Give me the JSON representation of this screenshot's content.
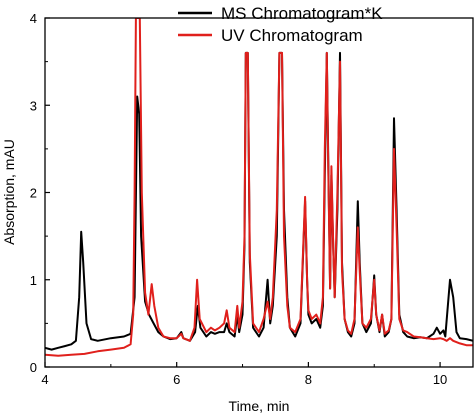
{
  "chart_data": {
    "type": "line",
    "title": "",
    "xlabel": "Time, min",
    "ylabel": "Absorption, mAU",
    "xlim": [
      4,
      10.5
    ],
    "ylim": [
      0,
      4
    ],
    "x_ticks": [
      "4",
      "6",
      "8",
      "10"
    ],
    "y_ticks": [
      "0",
      "1",
      "2",
      "3",
      "4"
    ],
    "grid": false,
    "legend_position": "top-right",
    "series": [
      {
        "name": "MS Chromatogram*K",
        "color": "#000000",
        "points": [
          [
            4.0,
            0.22
          ],
          [
            4.1,
            0.2
          ],
          [
            4.2,
            0.22
          ],
          [
            4.3,
            0.24
          ],
          [
            4.4,
            0.26
          ],
          [
            4.47,
            0.3
          ],
          [
            4.52,
            0.8
          ],
          [
            4.55,
            1.55
          ],
          [
            4.58,
            1.2
          ],
          [
            4.63,
            0.5
          ],
          [
            4.7,
            0.32
          ],
          [
            4.8,
            0.3
          ],
          [
            5.0,
            0.33
          ],
          [
            5.2,
            0.35
          ],
          [
            5.3,
            0.38
          ],
          [
            5.36,
            0.8
          ],
          [
            5.4,
            3.1
          ],
          [
            5.43,
            2.9
          ],
          [
            5.46,
            1.5
          ],
          [
            5.52,
            0.75
          ],
          [
            5.58,
            0.6
          ],
          [
            5.65,
            0.5
          ],
          [
            5.72,
            0.4
          ],
          [
            5.8,
            0.35
          ],
          [
            5.9,
            0.32
          ],
          [
            6.0,
            0.33
          ],
          [
            6.07,
            0.4
          ],
          [
            6.1,
            0.33
          ],
          [
            6.2,
            0.3
          ],
          [
            6.28,
            0.4
          ],
          [
            6.32,
            0.7
          ],
          [
            6.36,
            0.45
          ],
          [
            6.45,
            0.35
          ],
          [
            6.52,
            0.4
          ],
          [
            6.58,
            0.38
          ],
          [
            6.65,
            0.4
          ],
          [
            6.72,
            0.4
          ],
          [
            6.76,
            0.5
          ],
          [
            6.8,
            0.4
          ],
          [
            6.88,
            0.35
          ],
          [
            6.92,
            0.6
          ],
          [
            6.95,
            0.4
          ],
          [
            7.0,
            0.6
          ],
          [
            7.03,
            1.4
          ],
          [
            7.05,
            3.6
          ],
          [
            7.08,
            3.6
          ],
          [
            7.11,
            1.2
          ],
          [
            7.16,
            0.45
          ],
          [
            7.25,
            0.35
          ],
          [
            7.32,
            0.45
          ],
          [
            7.38,
            1.0
          ],
          [
            7.42,
            0.5
          ],
          [
            7.46,
            0.7
          ],
          [
            7.52,
            1.5
          ],
          [
            7.56,
            3.6
          ],
          [
            7.6,
            3.6
          ],
          [
            7.63,
            1.8
          ],
          [
            7.68,
            0.8
          ],
          [
            7.72,
            0.45
          ],
          [
            7.8,
            0.35
          ],
          [
            7.88,
            0.5
          ],
          [
            7.95,
            1.9
          ],
          [
            7.98,
            1.0
          ],
          [
            8.0,
            0.6
          ],
          [
            8.05,
            0.5
          ],
          [
            8.12,
            0.55
          ],
          [
            8.18,
            0.45
          ],
          [
            8.22,
            0.7
          ],
          [
            8.25,
            2.2
          ],
          [
            8.28,
            3.6
          ],
          [
            8.3,
            2.5
          ],
          [
            8.33,
            0.9
          ],
          [
            8.35,
            2.2
          ],
          [
            8.38,
            1.3
          ],
          [
            8.4,
            0.8
          ],
          [
            8.44,
            1.8
          ],
          [
            8.48,
            3.6
          ],
          [
            8.51,
            1.2
          ],
          [
            8.55,
            0.55
          ],
          [
            8.6,
            0.4
          ],
          [
            8.65,
            0.35
          ],
          [
            8.7,
            0.5
          ],
          [
            8.75,
            1.9
          ],
          [
            8.78,
            1.2
          ],
          [
            8.82,
            0.5
          ],
          [
            8.88,
            0.4
          ],
          [
            8.95,
            0.5
          ],
          [
            9.0,
            1.05
          ],
          [
            9.03,
            0.6
          ],
          [
            9.08,
            0.4
          ],
          [
            9.12,
            0.6
          ],
          [
            9.16,
            0.35
          ],
          [
            9.22,
            0.4
          ],
          [
            9.26,
            0.55
          ],
          [
            9.3,
            2.85
          ],
          [
            9.34,
            1.8
          ],
          [
            9.38,
            0.6
          ],
          [
            9.44,
            0.4
          ],
          [
            9.5,
            0.35
          ],
          [
            9.6,
            0.33
          ],
          [
            9.7,
            0.34
          ],
          [
            9.8,
            0.33
          ],
          [
            9.9,
            0.38
          ],
          [
            9.95,
            0.45
          ],
          [
            10.0,
            0.38
          ],
          [
            10.05,
            0.42
          ],
          [
            10.08,
            0.35
          ],
          [
            10.15,
            1.0
          ],
          [
            10.2,
            0.8
          ],
          [
            10.25,
            0.4
          ],
          [
            10.3,
            0.33
          ],
          [
            10.4,
            0.32
          ],
          [
            10.5,
            0.3
          ]
        ]
      },
      {
        "name": "UV Chromatogram",
        "color": "#e0201c",
        "points": [
          [
            4.0,
            0.14
          ],
          [
            4.2,
            0.13
          ],
          [
            4.4,
            0.14
          ],
          [
            4.6,
            0.15
          ],
          [
            4.8,
            0.18
          ],
          [
            5.0,
            0.2
          ],
          [
            5.2,
            0.22
          ],
          [
            5.3,
            0.26
          ],
          [
            5.34,
            0.6
          ],
          [
            5.36,
            2.0
          ],
          [
            5.38,
            4.0
          ],
          [
            5.4,
            4.0
          ],
          [
            5.42,
            4.0
          ],
          [
            5.44,
            4.0
          ],
          [
            5.47,
            2.0
          ],
          [
            5.52,
            0.85
          ],
          [
            5.57,
            0.6
          ],
          [
            5.62,
            0.95
          ],
          [
            5.66,
            0.7
          ],
          [
            5.72,
            0.45
          ],
          [
            5.8,
            0.35
          ],
          [
            5.9,
            0.33
          ],
          [
            6.0,
            0.33
          ],
          [
            6.07,
            0.38
          ],
          [
            6.1,
            0.33
          ],
          [
            6.2,
            0.3
          ],
          [
            6.27,
            0.45
          ],
          [
            6.31,
            1.0
          ],
          [
            6.35,
            0.55
          ],
          [
            6.45,
            0.4
          ],
          [
            6.52,
            0.45
          ],
          [
            6.58,
            0.42
          ],
          [
            6.65,
            0.45
          ],
          [
            6.72,
            0.5
          ],
          [
            6.76,
            0.65
          ],
          [
            6.8,
            0.45
          ],
          [
            6.88,
            0.4
          ],
          [
            6.92,
            0.7
          ],
          [
            6.95,
            0.45
          ],
          [
            7.0,
            0.75
          ],
          [
            7.03,
            1.5
          ],
          [
            7.05,
            3.6
          ],
          [
            7.08,
            3.6
          ],
          [
            7.11,
            1.3
          ],
          [
            7.16,
            0.5
          ],
          [
            7.25,
            0.4
          ],
          [
            7.32,
            0.55
          ],
          [
            7.38,
            0.75
          ],
          [
            7.42,
            0.55
          ],
          [
            7.46,
            0.8
          ],
          [
            7.52,
            1.8
          ],
          [
            7.56,
            3.6
          ],
          [
            7.6,
            3.6
          ],
          [
            7.63,
            1.5
          ],
          [
            7.68,
            0.7
          ],
          [
            7.72,
            0.45
          ],
          [
            7.8,
            0.4
          ],
          [
            7.88,
            0.55
          ],
          [
            7.95,
            1.95
          ],
          [
            7.98,
            1.0
          ],
          [
            8.0,
            0.65
          ],
          [
            8.05,
            0.55
          ],
          [
            8.12,
            0.6
          ],
          [
            8.18,
            0.5
          ],
          [
            8.22,
            0.8
          ],
          [
            8.25,
            2.5
          ],
          [
            8.28,
            3.6
          ],
          [
            8.3,
            2.4
          ],
          [
            8.33,
            0.9
          ],
          [
            8.35,
            2.3
          ],
          [
            8.38,
            1.3
          ],
          [
            8.4,
            0.8
          ],
          [
            8.44,
            2.0
          ],
          [
            8.48,
            3.5
          ],
          [
            8.51,
            1.1
          ],
          [
            8.55,
            0.55
          ],
          [
            8.6,
            0.42
          ],
          [
            8.65,
            0.38
          ],
          [
            8.7,
            0.55
          ],
          [
            8.75,
            1.6
          ],
          [
            8.78,
            1.1
          ],
          [
            8.82,
            0.5
          ],
          [
            8.88,
            0.45
          ],
          [
            8.95,
            0.55
          ],
          [
            9.0,
            1.0
          ],
          [
            9.03,
            0.6
          ],
          [
            9.08,
            0.42
          ],
          [
            9.12,
            0.6
          ],
          [
            9.16,
            0.38
          ],
          [
            9.22,
            0.42
          ],
          [
            9.26,
            0.55
          ],
          [
            9.3,
            2.5
          ],
          [
            9.34,
            1.6
          ],
          [
            9.38,
            0.55
          ],
          [
            9.44,
            0.42
          ],
          [
            9.5,
            0.4
          ],
          [
            9.6,
            0.35
          ],
          [
            9.7,
            0.34
          ],
          [
            9.8,
            0.33
          ],
          [
            9.9,
            0.32
          ],
          [
            10.0,
            0.33
          ],
          [
            10.05,
            0.32
          ],
          [
            10.1,
            0.3
          ],
          [
            10.15,
            0.33
          ],
          [
            10.2,
            0.3
          ],
          [
            10.3,
            0.27
          ],
          [
            10.4,
            0.25
          ],
          [
            10.5,
            0.25
          ]
        ]
      }
    ]
  }
}
